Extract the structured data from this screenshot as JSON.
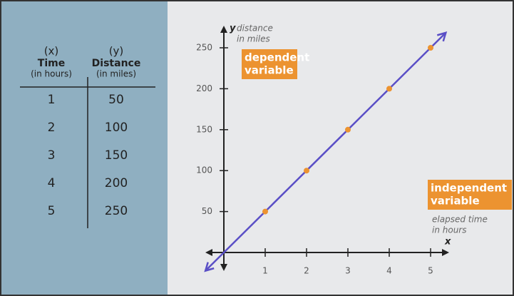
{
  "table": {
    "headers": [
      [
        "(x)",
        "Time",
        "(in hours)"
      ],
      [
        "(y)",
        "Distance",
        "(in miles)"
      ]
    ],
    "rows": [
      [
        "1",
        "50"
      ],
      [
        "2",
        "100"
      ],
      [
        "3",
        "150"
      ],
      [
        "4",
        "200"
      ],
      [
        "5",
        "250"
      ]
    ]
  },
  "chart_data": {
    "type": "line",
    "x": [
      1,
      2,
      3,
      4,
      5
    ],
    "series": [
      {
        "color": "#5a4fc6",
        "marker_color": "#ec9330",
        "values": [
          50,
          100,
          150,
          200,
          250
        ]
      }
    ],
    "xlim": [
      0,
      5
    ],
    "ylim": [
      0,
      250
    ],
    "xticks": [
      1,
      2,
      3,
      4,
      5
    ],
    "yticks": [
      50,
      100,
      150,
      200,
      250
    ],
    "y_axis_label": "y",
    "y_axis_note": [
      "distance",
      "in miles"
    ],
    "x_axis_label": "x",
    "x_axis_note": [
      "elapsed time",
      "in hours"
    ],
    "y_tag": [
      "dependent",
      "variable"
    ],
    "x_tag": [
      "independent",
      "variable"
    ]
  }
}
